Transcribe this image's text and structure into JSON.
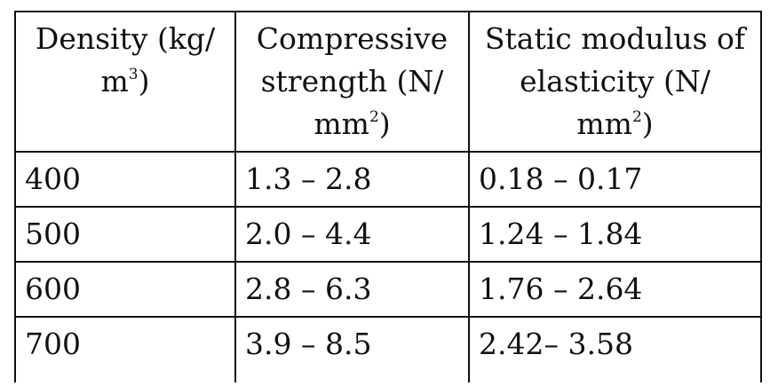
{
  "table": {
    "headers": [
      {
        "pre": "Density (kg/ m",
        "sup": "3",
        "post": ")"
      },
      {
        "pre": "Compressive strength (N/ mm",
        "sup": "2",
        "post": ")"
      },
      {
        "pre": "Static modulus of elasticity (N/ mm",
        "sup": "2",
        "post": ")"
      }
    ],
    "rows": [
      [
        "400",
        "1.3 – 2.8",
        "0.18 – 0.17"
      ],
      [
        "500",
        "2.0 – 4.4",
        "1.24 – 1.84"
      ],
      [
        "600",
        "2.8 – 6.3",
        "1.76 – 2.64"
      ],
      [
        "700",
        "3.9 – 8.5",
        "2.42– 3.58"
      ]
    ]
  }
}
